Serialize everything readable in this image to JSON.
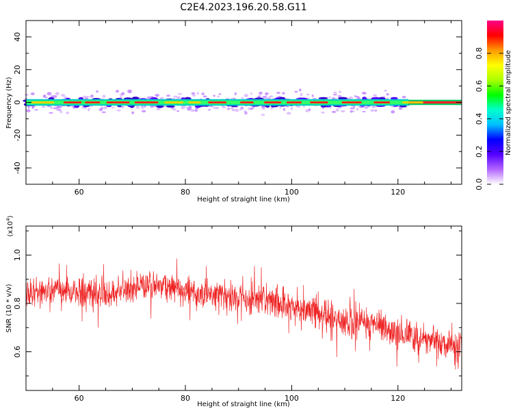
{
  "title": "C2E4.2023.196.20.58.G11",
  "chart_data": [
    {
      "type": "heatmap",
      "title": "",
      "xlabel": "Height of straight line (km)",
      "ylabel": "Frequency (Hz)",
      "xlim": [
        50,
        132
      ],
      "ylim": [
        -50,
        50
      ],
      "xticks": [
        "60",
        "80",
        "100",
        "120"
      ],
      "yticks": [
        "-40",
        "-20",
        "0",
        "20",
        "40"
      ],
      "band_center_hz": 0,
      "band_halfwidth_hz": 2,
      "scatter_halfwidth_hz": 8,
      "colorbar": {
        "label": "Normalized spectral amplitude",
        "range": [
          0.0,
          1.0
        ],
        "ticks": [
          "0.0",
          "0.2",
          "0.4",
          "0.6",
          "0.8"
        ],
        "colors": [
          "#ffffff",
          "#b366ff",
          "#5500ff",
          "#0000ff",
          "#00bfff",
          "#00ffcc",
          "#00ff00",
          "#aaff00",
          "#ffff00",
          "#ff9900",
          "#ff0000",
          "#ff0088"
        ]
      }
    },
    {
      "type": "line",
      "title": "",
      "xlabel": "Height of straight line (km)",
      "ylabel": "SNR (10 * v/v)",
      "scale_label": "(x10",
      "scale_exponent": "4",
      "scale_suffix": ")",
      "xlim": [
        50,
        132
      ],
      "ylim": [
        0.44,
        1.12
      ],
      "xticks": [
        "60",
        "80",
        "100",
        "120"
      ],
      "yticks": [
        "0.6",
        "0.8",
        "1.0"
      ],
      "series": [
        {
          "color": "#ee2222",
          "trend": {
            "x": [
              50,
              55,
              60,
              65,
              70,
              75,
              80,
              85,
              90,
              95,
              100,
              105,
              110,
              115,
              120,
              125,
              130,
              132
            ],
            "y": [
              0.84,
              0.86,
              0.85,
              0.84,
              0.87,
              0.88,
              0.85,
              0.83,
              0.83,
              0.82,
              0.78,
              0.76,
              0.73,
              0.72,
              0.68,
              0.65,
              0.63,
              0.62
            ]
          }
        }
      ]
    }
  ]
}
